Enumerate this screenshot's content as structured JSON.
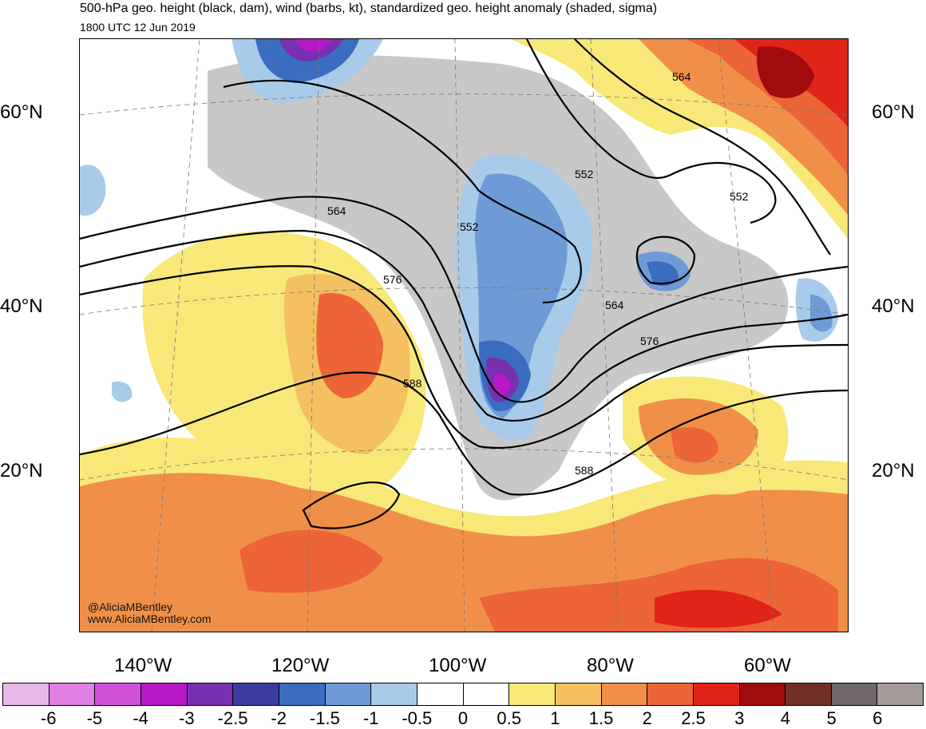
{
  "title": "500-hPa geo. height (black, dam), wind (barbs, kt), standardized geo. height anomaly (shaded, sigma)",
  "valid_time": "1800 UTC 12 Jun 2019",
  "credits": {
    "handle": "@AliciaMBentley",
    "website": "www.AliciaMBentley.com"
  },
  "lat_labels": [
    "60°N",
    "40°N",
    "20°N"
  ],
  "lon_labels": [
    "140°W",
    "120°W",
    "100°W",
    "80°W",
    "60°W"
  ],
  "contour_labels": [
    "564",
    "552",
    "576",
    "588",
    "564",
    "552",
    "552",
    "564",
    "576",
    "588"
  ],
  "colorbar": {
    "labels": [
      "-6",
      "-5",
      "-4",
      "-3",
      "-2.5",
      "-2",
      "-1.5",
      "-1",
      "-0.5",
      "0",
      "0.5",
      "1",
      "1.5",
      "2",
      "2.5",
      "3",
      "4",
      "5",
      "6"
    ],
    "colors": [
      "#e8b8e8",
      "#e080e0",
      "#d050d8",
      "#b818c8",
      "#7830b0",
      "#3c3ca0",
      "#3a6cc0",
      "#6e9ad6",
      "#a8cbea",
      "#ffffff",
      "#ffffff",
      "#f8e878",
      "#f4c060",
      "#f09048",
      "#ec6438",
      "#e02418",
      "#a00c0c",
      "#703028",
      "#706868",
      "#a49a9a"
    ]
  },
  "map_colors": {
    "land_gray": "#c8c8c8",
    "contour": "#000000",
    "coastline": "#555555"
  }
}
